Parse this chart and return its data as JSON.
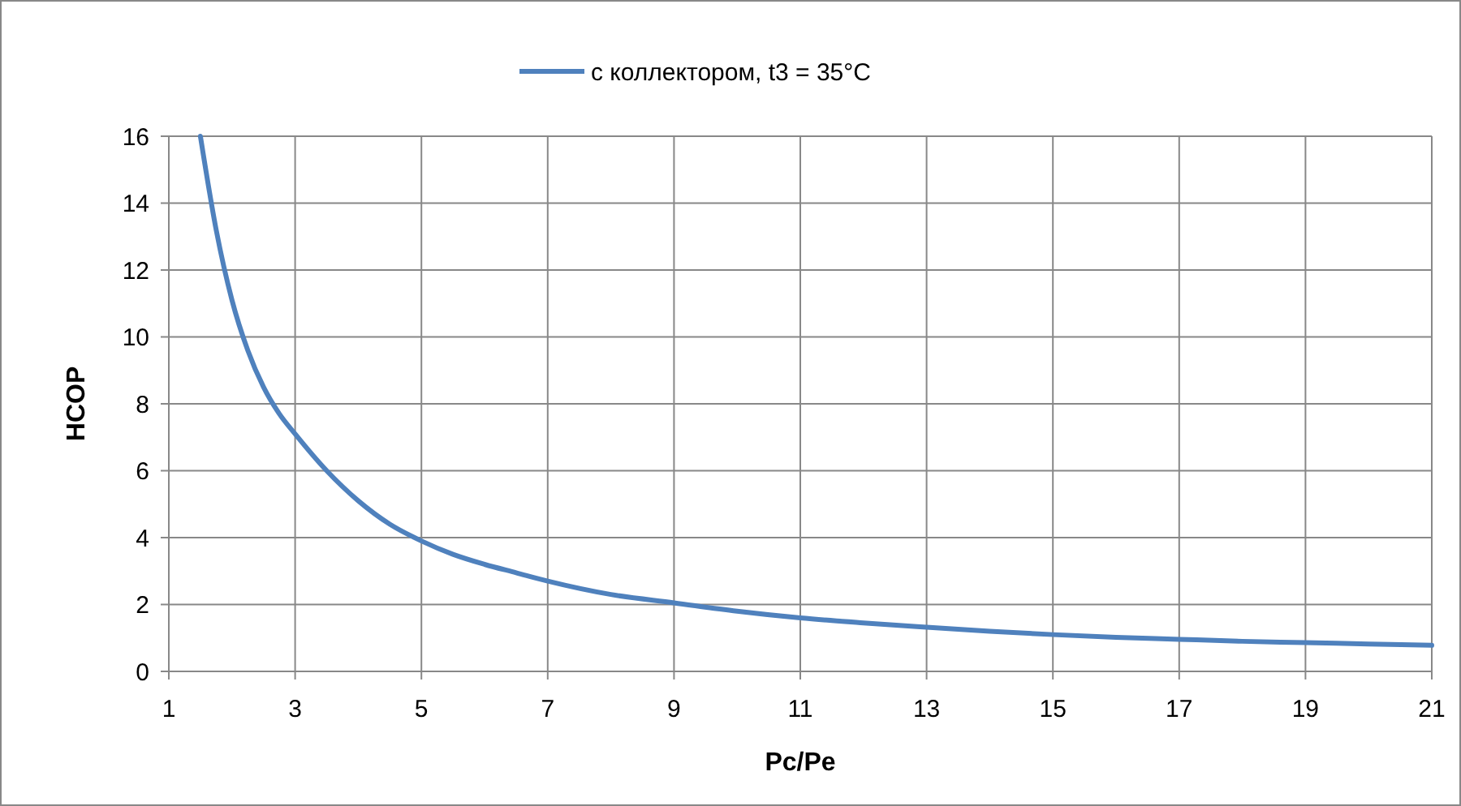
{
  "chart_data": {
    "type": "line",
    "xlabel": "Pc/Pe",
    "ylabel": "HCOP",
    "x": [
      1.5,
      1.75,
      2,
      2.25,
      2.5,
      2.75,
      3,
      3.5,
      4,
      4.5,
      5,
      5.5,
      6,
      6.5,
      7,
      8,
      9,
      10,
      11,
      12,
      13,
      14,
      15,
      16,
      17,
      18,
      19,
      20,
      21
    ],
    "series": [
      {
        "name": "с коллектором, t3 = 35°C",
        "color": "#4f81bd",
        "values": [
          16,
          13.2,
          11.1,
          9.6,
          8.5,
          7.7,
          7.1,
          6.0,
          5.1,
          4.4,
          3.9,
          3.5,
          3.2,
          2.95,
          2.7,
          2.3,
          2.05,
          1.8,
          1.6,
          1.45,
          1.32,
          1.2,
          1.1,
          1.02,
          0.96,
          0.9,
          0.86,
          0.82,
          0.78
        ]
      }
    ],
    "xlim": [
      1,
      21
    ],
    "xticks": [
      1,
      3,
      5,
      7,
      9,
      11,
      13,
      15,
      17,
      19,
      21
    ],
    "ylim": [
      0,
      16
    ],
    "yticks": [
      0,
      2,
      4,
      6,
      8,
      10,
      12,
      14,
      16
    ],
    "grid": true,
    "legend": "top",
    "marker": "none",
    "line_style": "solid"
  }
}
